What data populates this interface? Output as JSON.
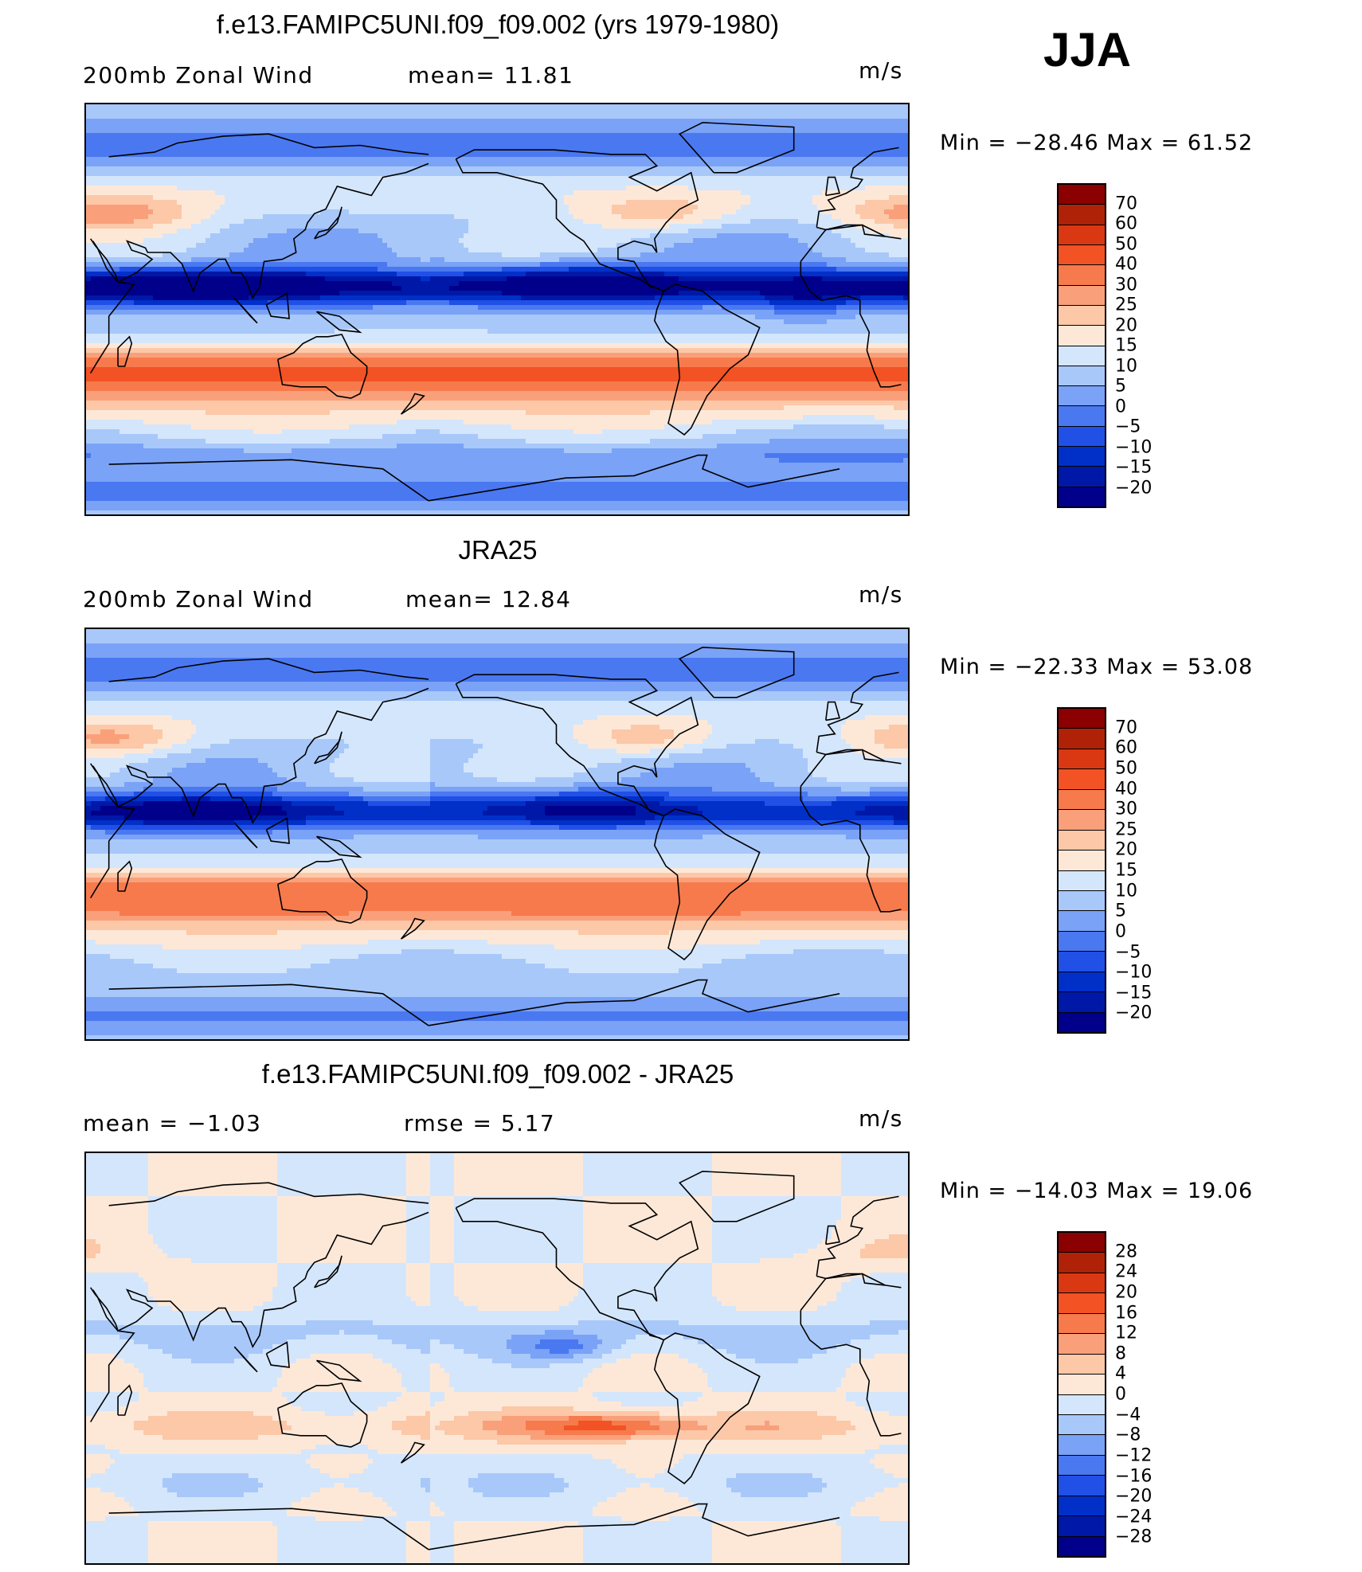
{
  "season": "JJA",
  "palette": [
    "#00008b",
    "#0018a8",
    "#0030c8",
    "#2050e6",
    "#4a78f0",
    "#7aa2f6",
    "#a8c8fa",
    "#d4e6fb",
    "#fde8d8",
    "#fcc8a8",
    "#f9a07a",
    "#f77a4c",
    "#f25224",
    "#d93812",
    "#b02208",
    "#8b0000"
  ],
  "panels": [
    {
      "title": "f.e13.FAMIPC5UNI.f09_f09.002 (yrs 1979-1980)",
      "left_label": "200mb  Zonal  Wind",
      "stat1": "mean=   11.81",
      "stat2": "",
      "units": "m/s",
      "min_label": "Min",
      "min_value": "−28.46",
      "max_label": "Max",
      "max_value": "61.52",
      "levels": [
        "70",
        "60",
        "50",
        "40",
        "30",
        "25",
        "20",
        "15",
        "10",
        "5",
        "0",
        "−5",
        "−10",
        "−15",
        "−20"
      ],
      "field": "model"
    },
    {
      "title": "JRA25",
      "left_label": "200mb  Zonal  Wind",
      "stat1": "mean=   12.84",
      "stat2": "",
      "units": "m/s",
      "min_label": "Min",
      "min_value": "−22.33",
      "max_label": "Max",
      "max_value": "53.08",
      "levels": [
        "70",
        "60",
        "50",
        "40",
        "30",
        "25",
        "20",
        "15",
        "10",
        "5",
        "0",
        "−5",
        "−10",
        "−15",
        "−20"
      ],
      "field": "obs"
    },
    {
      "title": "f.e13.FAMIPC5UNI.f09_f09.002 - JRA25",
      "left_label": "mean  =   −1.03",
      "stat1": "rmse  =    5.17",
      "stat2": "",
      "units": "m/s",
      "min_label": "Min",
      "min_value": "−14.03",
      "max_label": "Max",
      "max_value": "19.06",
      "levels": [
        "28",
        "24",
        "20",
        "16",
        "12",
        "8",
        "4",
        "0",
        "−4",
        "−8",
        "−12",
        "−16",
        "−20",
        "−24",
        "−28"
      ],
      "field": "diff"
    }
  ]
}
